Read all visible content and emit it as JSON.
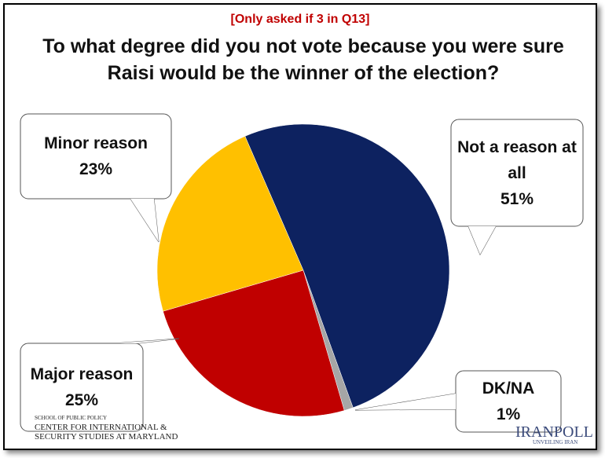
{
  "chart_data": {
    "type": "pie",
    "subtitle": "[Only asked if 3 in Q13]",
    "title": "To what degree did you not vote because you were sure Raisi would be the winner of the election?",
    "categories": [
      "Not a reason at all",
      "DK/NA",
      "Major reason",
      "Minor reason"
    ],
    "values": [
      51,
      1,
      25,
      23
    ],
    "value_labels": [
      "51%",
      "1%",
      "25%",
      "23%"
    ],
    "colors": [
      "#0d2260",
      "#a6a6a6",
      "#c00000",
      "#ffc000"
    ]
  },
  "footer": {
    "left_small": "SCHOOL OF PUBLIC POLICY",
    "left_line1": "CENTER FOR INTERNATIONAL &",
    "left_line2": "SECURITY STUDIES AT MARYLAND",
    "right_logo": "IRANPOLL",
    "right_tag": "UNVEILING IRAN"
  }
}
